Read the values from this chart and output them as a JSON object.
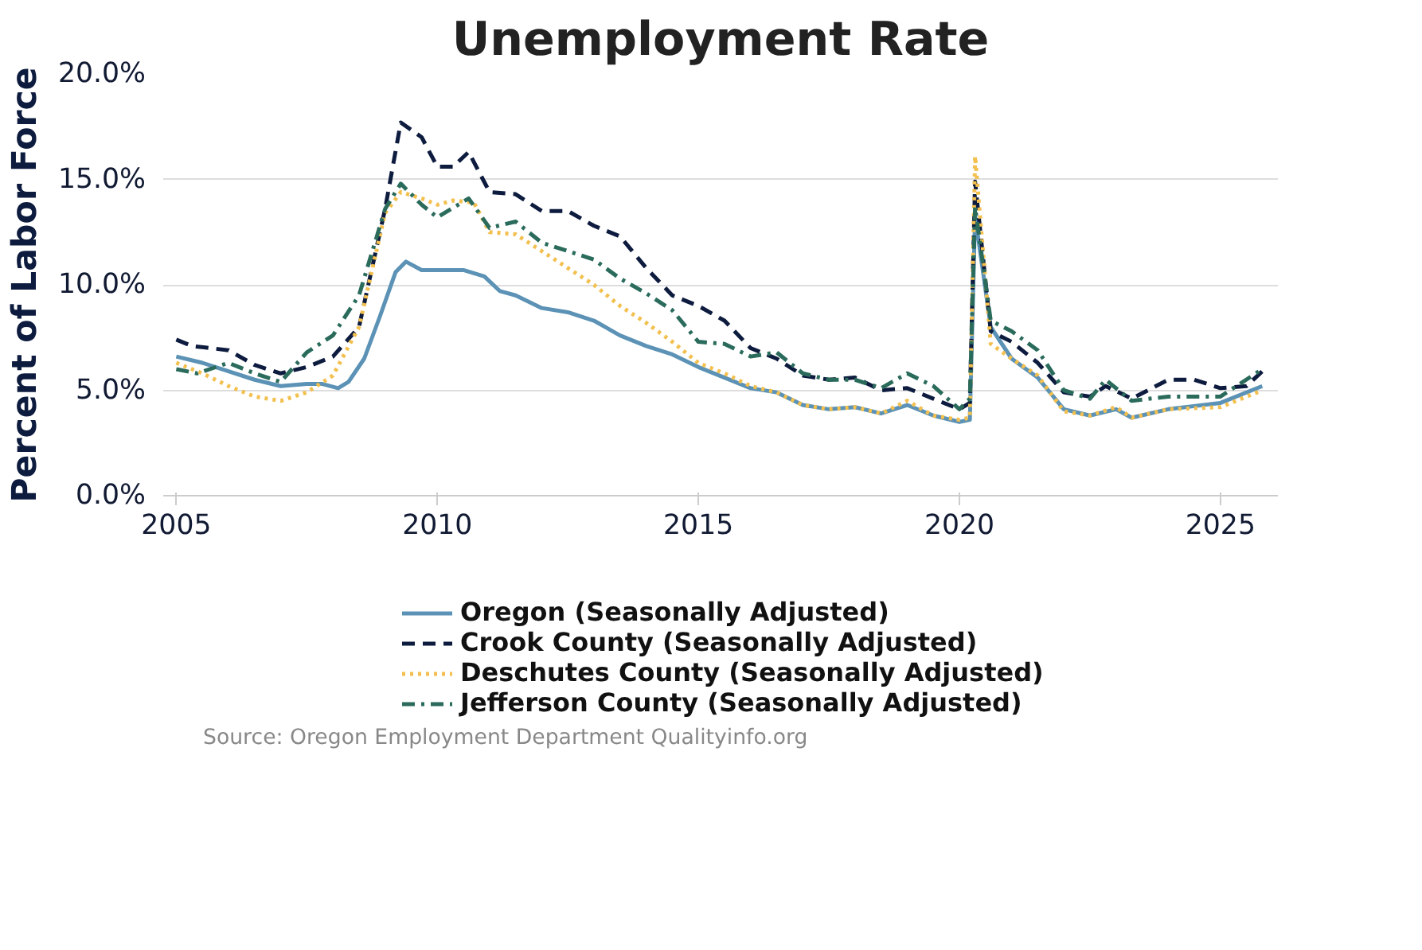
{
  "chart_data": {
    "type": "line",
    "title": "Unemployment Rate",
    "ylabel": "Percent of Labor Force",
    "xlim": [
      2004.75,
      2026.1
    ],
    "xticks": [
      2005,
      2010,
      2015,
      2020,
      2025
    ],
    "ylim": [
      0,
      20
    ],
    "yticks": [
      {
        "value": 0,
        "label": "0.0%"
      },
      {
        "value": 5,
        "label": "5.0%"
      },
      {
        "value": 10,
        "label": "10.0%"
      },
      {
        "value": 15,
        "label": "15.0%"
      },
      {
        "value": 20,
        "label": "20.0%"
      }
    ],
    "grid": "y",
    "legend": "bottom",
    "marker": "none",
    "annotations": [
      "Source: Oregon Employment Department Qualityinfo.org"
    ],
    "series": [
      {
        "name": "Oregon (Seasonally Adjusted)",
        "color": "#5b92b5",
        "line_style": "solid",
        "x": [
          2005,
          2005.5,
          2006,
          2006.5,
          2007,
          2007.5,
          2007.8,
          2008.1,
          2008.3,
          2008.6,
          2008.9,
          2009.2,
          2009.4,
          2009.7,
          2010,
          2010.5,
          2010.9,
          2011.2,
          2011.5,
          2012,
          2012.5,
          2013,
          2013.5,
          2014,
          2014.5,
          2015,
          2015.5,
          2016,
          2016.5,
          2017,
          2017.5,
          2018,
          2018.5,
          2019,
          2019.5,
          2020,
          2020.2,
          2020.3,
          2020.6,
          2021,
          2021.5,
          2022,
          2022.5,
          2023,
          2023.3,
          2024,
          2025,
          2025.8
        ],
        "values": [
          6.6,
          6.3,
          5.9,
          5.5,
          5.2,
          5.3,
          5.3,
          5.1,
          5.4,
          6.5,
          8.5,
          10.6,
          11.1,
          10.7,
          10.7,
          10.7,
          10.4,
          9.7,
          9.5,
          8.9,
          8.7,
          8.3,
          7.6,
          7.1,
          6.7,
          6.1,
          5.6,
          5.1,
          4.9,
          4.3,
          4.1,
          4.2,
          3.9,
          4.3,
          3.8,
          3.5,
          3.6,
          13.3,
          8,
          6.5,
          5.6,
          4.1,
          3.8,
          4.1,
          3.7,
          4.1,
          4.4,
          5.2
        ]
      },
      {
        "name": "Crook County (Seasonally Adjusted)",
        "color": "#0d1b3e",
        "line_style": "dashed",
        "x": [
          2005,
          2005.3,
          2006,
          2006.5,
          2007,
          2007.5,
          2008,
          2008.5,
          2009,
          2009.3,
          2009.7,
          2010,
          2010.3,
          2010.6,
          2011,
          2011.5,
          2012,
          2012.5,
          2013,
          2013.5,
          2014,
          2014.5,
          2015,
          2015.5,
          2016,
          2016.5,
          2017,
          2017.5,
          2018,
          2018.5,
          2019,
          2019.5,
          2020,
          2020.2,
          2020.3,
          2020.6,
          2021,
          2021.5,
          2022,
          2022.5,
          2022.8,
          2023.3,
          2024,
          2024.5,
          2025,
          2025.5,
          2025.8
        ],
        "values": [
          7.4,
          7.1,
          6.9,
          6.2,
          5.8,
          6.1,
          6.6,
          8.0,
          13.6,
          17.7,
          17.0,
          15.6,
          15.6,
          16.3,
          14.4,
          14.3,
          13.5,
          13.5,
          12.8,
          12.3,
          10.8,
          9.5,
          9.0,
          8.3,
          7.0,
          6.5,
          5.7,
          5.5,
          5.6,
          5.0,
          5.1,
          4.6,
          4.1,
          4.4,
          14.9,
          7.8,
          7.3,
          6.3,
          4.9,
          4.7,
          5.2,
          4.6,
          5.5,
          5.5,
          5.1,
          5.2,
          5.9
        ]
      },
      {
        "name": "Deschutes County (Seasonally Adjusted)",
        "color": "#f3c04f",
        "line_style": "dotted",
        "x": [
          2005,
          2005.5,
          2006,
          2006.5,
          2007,
          2007.5,
          2008,
          2008.5,
          2009,
          2009.3,
          2009.7,
          2010,
          2010.3,
          2010.7,
          2011,
          2011.5,
          2012,
          2012.5,
          2013,
          2013.5,
          2014,
          2014.5,
          2015,
          2015.5,
          2016,
          2016.5,
          2017,
          2017.5,
          2018,
          2018.5,
          2019,
          2019.5,
          2020,
          2020.2,
          2020.3,
          2020.6,
          2021,
          2021.5,
          2022,
          2022.5,
          2023,
          2023.3,
          2024,
          2025,
          2025.8
        ],
        "values": [
          6.3,
          5.8,
          5.2,
          4.7,
          4.5,
          4.9,
          5.7,
          8.0,
          13.4,
          14.4,
          14.1,
          13.8,
          14.0,
          13.9,
          12.5,
          12.4,
          11.6,
          10.8,
          10.0,
          9.0,
          8.2,
          7.3,
          6.3,
          5.8,
          5.2,
          4.9,
          4.3,
          4.1,
          4.2,
          3.9,
          4.5,
          3.8,
          3.6,
          3.7,
          16.1,
          7.2,
          6.5,
          5.7,
          4.0,
          3.8,
          4.2,
          3.7,
          4.1,
          4.2,
          5.0
        ]
      },
      {
        "name": "Jefferson County (Seasonally Adjusted)",
        "color": "#2a6b5c",
        "line_style": "dashdot",
        "x": [
          2005,
          2005.4,
          2006,
          2006.5,
          2007,
          2007.5,
          2008,
          2008.5,
          2009,
          2009.3,
          2009.7,
          2010,
          2010.6,
          2011,
          2011.5,
          2012,
          2012.5,
          2013,
          2013.5,
          2014,
          2014.5,
          2015,
          2015.5,
          2016,
          2016.5,
          2017,
          2017.5,
          2018,
          2018.5,
          2019,
          2019.5,
          2020,
          2020.2,
          2020.3,
          2020.6,
          2021,
          2021.5,
          2022,
          2022.5,
          2022.8,
          2023.3,
          2024,
          2025,
          2025.8
        ],
        "values": [
          6.0,
          5.8,
          6.3,
          5.8,
          5.4,
          6.8,
          7.6,
          9.5,
          13.6,
          14.8,
          13.8,
          13.2,
          14.1,
          12.7,
          13.0,
          12.0,
          11.6,
          11.2,
          10.3,
          9.6,
          8.8,
          7.3,
          7.2,
          6.6,
          6.8,
          5.8,
          5.5,
          5.5,
          5.1,
          5.8,
          5.2,
          4.1,
          4.6,
          13.7,
          8.3,
          7.8,
          6.9,
          5.0,
          4.6,
          5.5,
          4.5,
          4.7,
          4.7,
          6.0
        ]
      }
    ]
  }
}
